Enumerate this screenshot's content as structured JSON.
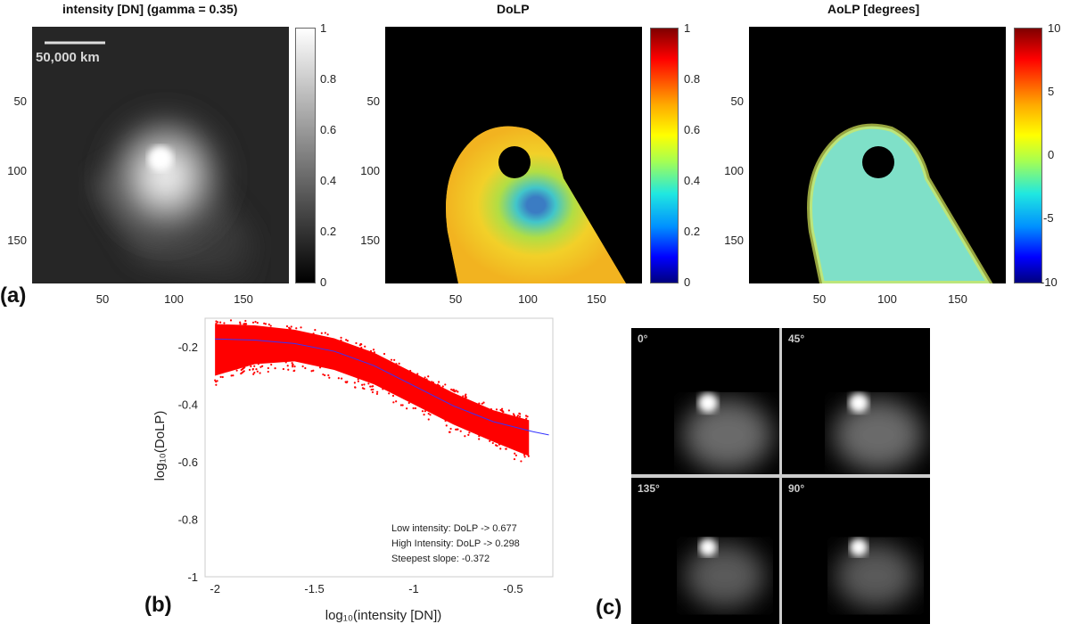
{
  "panel_labels": {
    "a": "(a)",
    "b": "(b)",
    "c": "(c)"
  },
  "intensity": {
    "title": "intensity [DN] (gamma = 0.35)",
    "scale_label": "50,000 km",
    "y_ticks": [
      "50",
      "100",
      "150"
    ],
    "x_ticks": [
      "50",
      "100",
      "150"
    ],
    "cbar_ticks": [
      "1",
      "0.8",
      "0.6",
      "0.4",
      "0.2",
      "0"
    ]
  },
  "dolp": {
    "title": "DoLP",
    "y_ticks": [
      "50",
      "100",
      "150"
    ],
    "x_ticks": [
      "50",
      "100",
      "150"
    ],
    "cbar_ticks": [
      "1",
      "0.8",
      "0.6",
      "0.4",
      "0.2",
      "0"
    ]
  },
  "aolp": {
    "title": "AoLP [degrees]",
    "y_ticks": [
      "50",
      "100",
      "150"
    ],
    "x_ticks": [
      "50",
      "100",
      "150"
    ],
    "cbar_ticks": [
      "10",
      "5",
      "0",
      "-5",
      "-10"
    ]
  },
  "polarizer_panels": [
    "0°",
    "45°",
    "135°",
    "90°"
  ],
  "chart_data": {
    "type": "scatter",
    "xlabel": "log₁₀(intensity [DN])",
    "ylabel": "log₁₀(DoLP)",
    "xlim": [
      -2.05,
      -0.3
    ],
    "ylim": [
      -1.0,
      -0.1
    ],
    "x_ticks": [
      "-2",
      "-1.5",
      "-1",
      "-0.5"
    ],
    "y_ticks": [
      "-0.2",
      "-0.4",
      "-0.6",
      "-0.8",
      "-1"
    ],
    "annotations": [
      "Low intensity: DoLP -> 0.677",
      "High Intensity: DoLP -> 0.298",
      "Steepest slope: -0.372"
    ],
    "scatter_color": "#ff0000",
    "fit_color": "#3333ff",
    "fit_curve": {
      "x": [
        -2.0,
        -1.8,
        -1.6,
        -1.4,
        -1.2,
        -1.0,
        -0.8,
        -0.6,
        -0.4,
        -0.32
      ],
      "y": [
        -0.172,
        -0.176,
        -0.188,
        -0.215,
        -0.265,
        -0.335,
        -0.405,
        -0.46,
        -0.495,
        -0.506
      ]
    },
    "scatter_spread": {
      "x": [
        -2.0,
        -1.8,
        -1.6,
        -1.4,
        -1.2,
        -1.0,
        -0.8,
        -0.6,
        -0.42
      ],
      "upper": [
        -0.12,
        -0.125,
        -0.14,
        -0.17,
        -0.22,
        -0.29,
        -0.36,
        -0.42,
        -0.455
      ],
      "lower": [
        -0.3,
        -0.26,
        -0.25,
        -0.28,
        -0.33,
        -0.4,
        -0.47,
        -0.53,
        -0.58
      ]
    }
  }
}
